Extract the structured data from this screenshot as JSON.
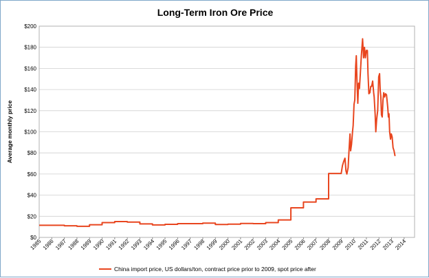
{
  "chart_data": {
    "type": "line",
    "title": "Long-Term Iron Ore Price",
    "xlabel": "",
    "ylabel": "Average monthly price",
    "xlim": [
      1985,
      2014.83
    ],
    "ylim": [
      0,
      200
    ],
    "y_ticks": [
      {
        "value": 0,
        "label": "$0"
      },
      {
        "value": 20,
        "label": "$20"
      },
      {
        "value": 40,
        "label": "$40"
      },
      {
        "value": 60,
        "label": "$60"
      },
      {
        "value": 80,
        "label": "$80"
      },
      {
        "value": 100,
        "label": "$100"
      },
      {
        "value": 120,
        "label": "$120"
      },
      {
        "value": 140,
        "label": "$140"
      },
      {
        "value": 160,
        "label": "$160"
      },
      {
        "value": 180,
        "label": "$180"
      },
      {
        "value": 200,
        "label": "$200"
      }
    ],
    "x_ticks": [
      "1985",
      "1986",
      "1987",
      "1988",
      "1989",
      "1990",
      "1991",
      "1992",
      "1993",
      "1994",
      "1995",
      "1996",
      "1997",
      "1998",
      "1999",
      "2000",
      "2001",
      "2002",
      "2003",
      "2004",
      "2005",
      "2006",
      "2007",
      "2008",
      "2009",
      "2010",
      "2011",
      "2012",
      "2013",
      "2014"
    ],
    "grid": true,
    "legend_position": "bottom",
    "series": [
      {
        "name": "China import price, US dollars/ton, contract price prior to 2009, spot price after",
        "color": "#e8451e",
        "points": [
          [
            1985.0,
            11.5
          ],
          [
            1987.0,
            11.5
          ],
          [
            1987.0,
            11.0
          ],
          [
            1988.0,
            11.0
          ],
          [
            1988.0,
            10.5
          ],
          [
            1989.0,
            10.5
          ],
          [
            1989.0,
            12.0
          ],
          [
            1990.0,
            12.0
          ],
          [
            1990.0,
            14.0
          ],
          [
            1991.0,
            14.0
          ],
          [
            1991.0,
            15.0
          ],
          [
            1992.0,
            15.0
          ],
          [
            1992.0,
            14.5
          ],
          [
            1993.0,
            14.5
          ],
          [
            1993.0,
            12.8
          ],
          [
            1994.0,
            12.8
          ],
          [
            1994.0,
            11.8
          ],
          [
            1995.0,
            11.8
          ],
          [
            1995.0,
            12.4
          ],
          [
            1996.0,
            12.4
          ],
          [
            1996.0,
            13.0
          ],
          [
            1998.0,
            13.0
          ],
          [
            1998.0,
            13.5
          ],
          [
            1999.0,
            13.5
          ],
          [
            1999.0,
            12.2
          ],
          [
            2000.0,
            12.2
          ],
          [
            2000.0,
            12.5
          ],
          [
            2001.0,
            12.5
          ],
          [
            2001.0,
            13.2
          ],
          [
            2002.0,
            13.2
          ],
          [
            2002.0,
            13.0
          ],
          [
            2003.0,
            13.0
          ],
          [
            2003.0,
            14.0
          ],
          [
            2004.0,
            14.0
          ],
          [
            2004.0,
            16.5
          ],
          [
            2005.0,
            16.5
          ],
          [
            2005.0,
            28.0
          ],
          [
            2006.0,
            28.0
          ],
          [
            2006.0,
            33.5
          ],
          [
            2007.0,
            33.5
          ],
          [
            2007.0,
            36.5
          ],
          [
            2008.0,
            36.5
          ],
          [
            2008.0,
            60.5
          ],
          [
            2009.0,
            60.5
          ],
          [
            2009.1,
            68
          ],
          [
            2009.2,
            72
          ],
          [
            2009.3,
            75
          ],
          [
            2009.38,
            63
          ],
          [
            2009.45,
            60
          ],
          [
            2009.55,
            66
          ],
          [
            2009.62,
            82
          ],
          [
            2009.7,
            98
          ],
          [
            2009.75,
            82
          ],
          [
            2009.82,
            88
          ],
          [
            2009.9,
            100
          ],
          [
            2009.95,
            106
          ],
          [
            2010.02,
            126
          ],
          [
            2010.08,
            130
          ],
          [
            2010.15,
            162
          ],
          [
            2010.2,
            172
          ],
          [
            2010.25,
            150
          ],
          [
            2010.32,
            127
          ],
          [
            2010.38,
            146
          ],
          [
            2010.45,
            141
          ],
          [
            2010.52,
            155
          ],
          [
            2010.6,
            172
          ],
          [
            2010.7,
            188
          ],
          [
            2010.78,
            170
          ],
          [
            2010.85,
            180
          ],
          [
            2010.92,
            170
          ],
          [
            2011.0,
            177
          ],
          [
            2011.08,
            177
          ],
          [
            2011.13,
            155
          ],
          [
            2011.2,
            136
          ],
          [
            2011.28,
            137
          ],
          [
            2011.35,
            143
          ],
          [
            2011.42,
            143
          ],
          [
            2011.5,
            148
          ],
          [
            2011.58,
            137
          ],
          [
            2011.62,
            133
          ],
          [
            2011.7,
            116
          ],
          [
            2011.75,
            100
          ],
          [
            2011.82,
            112
          ],
          [
            2011.9,
            120
          ],
          [
            2011.98,
            152
          ],
          [
            2012.05,
            155
          ],
          [
            2012.1,
            139
          ],
          [
            2012.15,
            133
          ],
          [
            2012.2,
            116
          ],
          [
            2012.26,
            114
          ],
          [
            2012.32,
            130
          ],
          [
            2012.38,
            137
          ],
          [
            2012.45,
            133
          ],
          [
            2012.52,
            136
          ],
          [
            2012.6,
            135
          ],
          [
            2012.65,
            129
          ],
          [
            2012.7,
            123
          ],
          [
            2012.75,
            114
          ],
          [
            2012.8,
            117
          ],
          [
            2012.85,
            100
          ],
          [
            2012.92,
            93
          ],
          [
            2012.98,
            98
          ],
          [
            2013.05,
            95
          ],
          [
            2013.12,
            85
          ],
          [
            2013.2,
            82
          ],
          [
            2013.28,
            77
          ]
        ]
      }
    ]
  }
}
